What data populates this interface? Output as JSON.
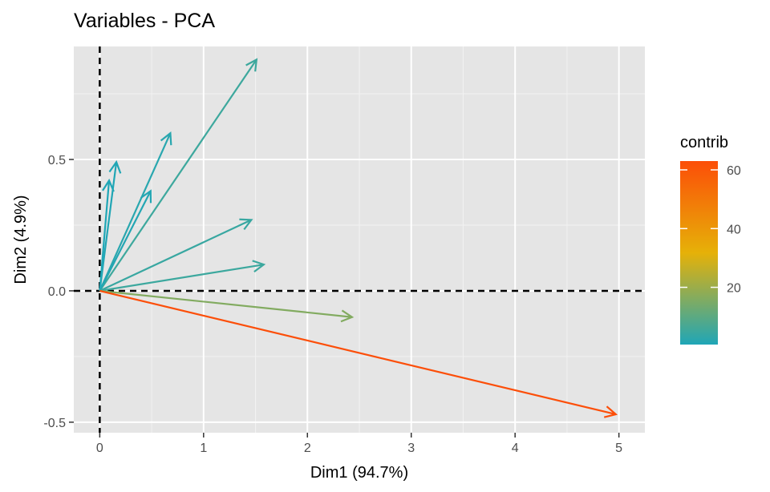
{
  "chart_data": {
    "type": "vector",
    "title": "Variables - PCA",
    "xlabel": "Dim1 (94.7%)",
    "ylabel": "Dim2 (4.9%)",
    "xlim": [
      -0.25,
      5.25
    ],
    "ylim": [
      -0.54,
      0.93
    ],
    "x_ticks": [
      0,
      1,
      2,
      3,
      4,
      5
    ],
    "x_tick_labels": [
      "0",
      "1",
      "2",
      "3",
      "4",
      "5"
    ],
    "y_ticks": [
      -0.5,
      0.0,
      0.5
    ],
    "y_tick_labels": [
      "-0.5",
      "0.0",
      "0.5"
    ],
    "grid": true,
    "reference_lines": {
      "x": 0,
      "y": 0,
      "style": "dashed"
    },
    "legend": {
      "title": "contrib",
      "placement": "right",
      "range": [
        0.5,
        63
      ],
      "ticks": [
        20,
        40,
        60
      ],
      "tick_labels": [
        "20",
        "40",
        "60"
      ],
      "gradient": [
        "#1fa6b7",
        "#e6b108",
        "#fc4e08"
      ]
    },
    "vectors": [
      {
        "x": 1.51,
        "y": 0.88,
        "contrib": 5.2
      },
      {
        "x": 0.68,
        "y": 0.6,
        "contrib": 2.0
      },
      {
        "x": 0.16,
        "y": 0.49,
        "contrib": 0.8
      },
      {
        "x": 0.09,
        "y": 0.42,
        "contrib": 0.7
      },
      {
        "x": 0.49,
        "y": 0.38,
        "contrib": 1.2
      },
      {
        "x": 1.46,
        "y": 0.27,
        "contrib": 4.5
      },
      {
        "x": 1.58,
        "y": 0.1,
        "contrib": 5.0
      },
      {
        "x": 2.43,
        "y": -0.1,
        "contrib": 16.0
      },
      {
        "x": 4.97,
        "y": -0.47,
        "contrib": 63.0
      }
    ]
  }
}
